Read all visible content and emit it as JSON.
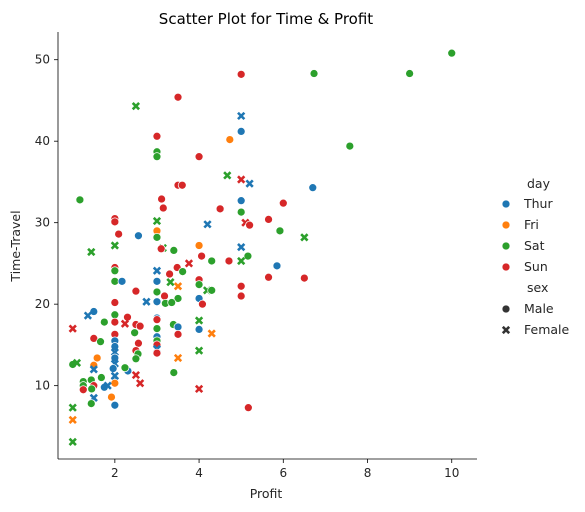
{
  "chart_data": {
    "type": "scatter",
    "title": "Scatter Plot for Time & Profit",
    "xlabel": "Profit",
    "ylabel": "Time-Travel",
    "xlim": [
      0.65,
      10.6
    ],
    "ylim": [
      1.0,
      53.4
    ],
    "xticks": [
      2,
      4,
      6,
      8,
      10
    ],
    "yticks": [
      10,
      20,
      30,
      40,
      50
    ],
    "grid": false,
    "legend_position": "right",
    "hue_title": "day",
    "style_title": "sex",
    "hue_levels": [
      {
        "name": "Thur",
        "color": "#1f77b4"
      },
      {
        "name": "Fri",
        "color": "#ff7f0e"
      },
      {
        "name": "Sat",
        "color": "#2ca02c"
      },
      {
        "name": "Sun",
        "color": "#d62728"
      }
    ],
    "style_levels": [
      {
        "name": "Male",
        "marker": "circle"
      },
      {
        "name": "Female",
        "marker": "x"
      }
    ],
    "points": [
      {
        "x": 10.0,
        "y": 50.8,
        "day": "Sat",
        "sex": "Male"
      },
      {
        "x": 9.0,
        "y": 48.3,
        "day": "Sat",
        "sex": "Male"
      },
      {
        "x": 6.73,
        "y": 48.3,
        "day": "Sat",
        "sex": "Male"
      },
      {
        "x": 5.0,
        "y": 48.2,
        "day": "Sun",
        "sex": "Male"
      },
      {
        "x": 3.5,
        "y": 45.4,
        "day": "Sun",
        "sex": "Male"
      },
      {
        "x": 2.5,
        "y": 44.3,
        "day": "Sat",
        "sex": "Female"
      },
      {
        "x": 5.0,
        "y": 43.1,
        "day": "Thur",
        "sex": "Female"
      },
      {
        "x": 5.0,
        "y": 41.2,
        "day": "Thur",
        "sex": "Male"
      },
      {
        "x": 3.0,
        "y": 40.6,
        "day": "Sun",
        "sex": "Male"
      },
      {
        "x": 4.73,
        "y": 40.2,
        "day": "Fri",
        "sex": "Male"
      },
      {
        "x": 7.58,
        "y": 39.4,
        "day": "Sat",
        "sex": "Male"
      },
      {
        "x": 3.0,
        "y": 38.7,
        "day": "Sat",
        "sex": "Male"
      },
      {
        "x": 3.0,
        "y": 38.1,
        "day": "Sat",
        "sex": "Male"
      },
      {
        "x": 4.0,
        "y": 38.1,
        "day": "Sun",
        "sex": "Male"
      },
      {
        "x": 4.67,
        "y": 35.8,
        "day": "Sat",
        "sex": "Female"
      },
      {
        "x": 5.0,
        "y": 35.3,
        "day": "Sun",
        "sex": "Female"
      },
      {
        "x": 5.2,
        "y": 34.8,
        "day": "Thur",
        "sex": "Female"
      },
      {
        "x": 3.5,
        "y": 34.6,
        "day": "Sun",
        "sex": "Male"
      },
      {
        "x": 3.6,
        "y": 34.6,
        "day": "Sun",
        "sex": "Male"
      },
      {
        "x": 6.7,
        "y": 34.3,
        "day": "Thur",
        "sex": "Male"
      },
      {
        "x": 1.17,
        "y": 32.8,
        "day": "Sat",
        "sex": "Male"
      },
      {
        "x": 3.11,
        "y": 32.9,
        "day": "Sun",
        "sex": "Male"
      },
      {
        "x": 5.0,
        "y": 32.7,
        "day": "Thur",
        "sex": "Male"
      },
      {
        "x": 6.0,
        "y": 32.4,
        "day": "Sun",
        "sex": "Male"
      },
      {
        "x": 3.15,
        "y": 31.8,
        "day": "Sun",
        "sex": "Male"
      },
      {
        "x": 4.5,
        "y": 31.7,
        "day": "Sun",
        "sex": "Male"
      },
      {
        "x": 5.0,
        "y": 31.3,
        "day": "Sat",
        "sex": "Male"
      },
      {
        "x": 2.0,
        "y": 30.5,
        "day": "Sun",
        "sex": "Male"
      },
      {
        "x": 2.0,
        "y": 30.1,
        "day": "Sun",
        "sex": "Male"
      },
      {
        "x": 3.0,
        "y": 30.2,
        "day": "Sat",
        "sex": "Female"
      },
      {
        "x": 5.65,
        "y": 30.4,
        "day": "Sun",
        "sex": "Male"
      },
      {
        "x": 5.1,
        "y": 30.0,
        "day": "Sun",
        "sex": "Female"
      },
      {
        "x": 4.2,
        "y": 29.8,
        "day": "Thur",
        "sex": "Female"
      },
      {
        "x": 5.2,
        "y": 29.7,
        "day": "Sun",
        "sex": "Male"
      },
      {
        "x": 3.0,
        "y": 29.0,
        "day": "Fri",
        "sex": "Male"
      },
      {
        "x": 5.92,
        "y": 29.0,
        "day": "Sat",
        "sex": "Male"
      },
      {
        "x": 2.09,
        "y": 28.6,
        "day": "Sun",
        "sex": "Male"
      },
      {
        "x": 2.56,
        "y": 28.4,
        "day": "Thur",
        "sex": "Male"
      },
      {
        "x": 3.0,
        "y": 28.2,
        "day": "Sat",
        "sex": "Male"
      },
      {
        "x": 6.5,
        "y": 28.2,
        "day": "Sat",
        "sex": "Female"
      },
      {
        "x": 4.0,
        "y": 27.2,
        "day": "Fri",
        "sex": "Male"
      },
      {
        "x": 2.0,
        "y": 27.2,
        "day": "Sat",
        "sex": "Female"
      },
      {
        "x": 3.14,
        "y": 26.9,
        "day": "Sat",
        "sex": "Female"
      },
      {
        "x": 3.1,
        "y": 26.8,
        "day": "Sun",
        "sex": "Male"
      },
      {
        "x": 3.4,
        "y": 26.6,
        "day": "Sat",
        "sex": "Male"
      },
      {
        "x": 1.44,
        "y": 26.4,
        "day": "Sat",
        "sex": "Female"
      },
      {
        "x": 5.0,
        "y": 27.0,
        "day": "Thur",
        "sex": "Female"
      },
      {
        "x": 4.06,
        "y": 25.9,
        "day": "Sun",
        "sex": "Male"
      },
      {
        "x": 5.16,
        "y": 25.9,
        "day": "Sat",
        "sex": "Male"
      },
      {
        "x": 4.3,
        "y": 25.3,
        "day": "Sat",
        "sex": "Male"
      },
      {
        "x": 4.71,
        "y": 25.3,
        "day": "Sun",
        "sex": "Male"
      },
      {
        "x": 5.0,
        "y": 25.3,
        "day": "Sat",
        "sex": "Female"
      },
      {
        "x": 3.76,
        "y": 25.0,
        "day": "Sun",
        "sex": "Female"
      },
      {
        "x": 5.85,
        "y": 24.7,
        "day": "Thur",
        "sex": "Male"
      },
      {
        "x": 3.48,
        "y": 24.5,
        "day": "Sun",
        "sex": "Male"
      },
      {
        "x": 2.0,
        "y": 24.5,
        "day": "Sun",
        "sex": "Male"
      },
      {
        "x": 2.0,
        "y": 24.1,
        "day": "Sat",
        "sex": "Male"
      },
      {
        "x": 3.0,
        "y": 24.1,
        "day": "Thur",
        "sex": "Female"
      },
      {
        "x": 3.61,
        "y": 24.0,
        "day": "Sat",
        "sex": "Male"
      },
      {
        "x": 3.3,
        "y": 23.7,
        "day": "Sun",
        "sex": "Male"
      },
      {
        "x": 5.65,
        "y": 23.3,
        "day": "Sun",
        "sex": "Male"
      },
      {
        "x": 6.5,
        "y": 23.2,
        "day": "Sun",
        "sex": "Male"
      },
      {
        "x": 4.0,
        "y": 23.0,
        "day": "Sun",
        "sex": "Male"
      },
      {
        "x": 3.0,
        "y": 22.8,
        "day": "Thur",
        "sex": "Male"
      },
      {
        "x": 3.32,
        "y": 22.7,
        "day": "Sat",
        "sex": "Female"
      },
      {
        "x": 2.0,
        "y": 22.8,
        "day": "Sat",
        "sex": "Male"
      },
      {
        "x": 2.17,
        "y": 22.8,
        "day": "Thur",
        "sex": "Male"
      },
      {
        "x": 4.0,
        "y": 22.4,
        "day": "Sat",
        "sex": "Male"
      },
      {
        "x": 5.0,
        "y": 22.2,
        "day": "Sun",
        "sex": "Male"
      },
      {
        "x": 3.5,
        "y": 22.2,
        "day": "Fri",
        "sex": "Female"
      },
      {
        "x": 3.0,
        "y": 21.5,
        "day": "Sat",
        "sex": "Male"
      },
      {
        "x": 2.5,
        "y": 21.6,
        "day": "Sun",
        "sex": "Male"
      },
      {
        "x": 4.19,
        "y": 21.7,
        "day": "Sat",
        "sex": "Female"
      },
      {
        "x": 4.3,
        "y": 21.7,
        "day": "Sat",
        "sex": "Male"
      },
      {
        "x": 5.0,
        "y": 21.0,
        "day": "Sun",
        "sex": "Male"
      },
      {
        "x": 3.18,
        "y": 21.0,
        "day": "Sun",
        "sex": "Male"
      },
      {
        "x": 4.0,
        "y": 20.7,
        "day": "Thur",
        "sex": "Male"
      },
      {
        "x": 3.5,
        "y": 20.7,
        "day": "Sat",
        "sex": "Male"
      },
      {
        "x": 3.0,
        "y": 20.3,
        "day": "Thur",
        "sex": "Male"
      },
      {
        "x": 2.75,
        "y": 20.3,
        "day": "Thur",
        "sex": "Female"
      },
      {
        "x": 2.0,
        "y": 20.2,
        "day": "Sun",
        "sex": "Male"
      },
      {
        "x": 3.2,
        "y": 20.1,
        "day": "Sat",
        "sex": "Male"
      },
      {
        "x": 4.08,
        "y": 20.0,
        "day": "Sun",
        "sex": "Male"
      },
      {
        "x": 3.35,
        "y": 20.2,
        "day": "Sat",
        "sex": "Male"
      },
      {
        "x": 1.5,
        "y": 19.1,
        "day": "Thur",
        "sex": "Male"
      },
      {
        "x": 1.36,
        "y": 18.6,
        "day": "Thur",
        "sex": "Female"
      },
      {
        "x": 2.0,
        "y": 18.7,
        "day": "Sat",
        "sex": "Male"
      },
      {
        "x": 2.3,
        "y": 18.4,
        "day": "Sun",
        "sex": "Male"
      },
      {
        "x": 3.0,
        "y": 18.3,
        "day": "Thur",
        "sex": "Male"
      },
      {
        "x": 3.0,
        "y": 18.1,
        "day": "Sun",
        "sex": "Male"
      },
      {
        "x": 4.0,
        "y": 18.0,
        "day": "Sat",
        "sex": "Female"
      },
      {
        "x": 2.0,
        "y": 17.8,
        "day": "Sun",
        "sex": "Male"
      },
      {
        "x": 2.24,
        "y": 17.6,
        "day": "Sun",
        "sex": "Female"
      },
      {
        "x": 1.0,
        "y": 17.0,
        "day": "Sun",
        "sex": "Female"
      },
      {
        "x": 1.75,
        "y": 17.8,
        "day": "Sat",
        "sex": "Male"
      },
      {
        "x": 2.5,
        "y": 17.5,
        "day": "Sun",
        "sex": "Male"
      },
      {
        "x": 2.6,
        "y": 17.3,
        "day": "Sun",
        "sex": "Male"
      },
      {
        "x": 3.39,
        "y": 17.5,
        "day": "Sat",
        "sex": "Male"
      },
      {
        "x": 3.5,
        "y": 17.2,
        "day": "Thur",
        "sex": "Male"
      },
      {
        "x": 3.0,
        "y": 17.0,
        "day": "Sat",
        "sex": "Male"
      },
      {
        "x": 4.0,
        "y": 16.9,
        "day": "Thur",
        "sex": "Male"
      },
      {
        "x": 4.3,
        "y": 16.4,
        "day": "Fri",
        "sex": "Female"
      },
      {
        "x": 2.0,
        "y": 16.3,
        "day": "Sun",
        "sex": "Male"
      },
      {
        "x": 2.47,
        "y": 16.5,
        "day": "Sat",
        "sex": "Male"
      },
      {
        "x": 3.0,
        "y": 16.0,
        "day": "Thur",
        "sex": "Male"
      },
      {
        "x": 3.5,
        "y": 16.3,
        "day": "Sun",
        "sex": "Male"
      },
      {
        "x": 1.5,
        "y": 15.8,
        "day": "Sun",
        "sex": "Male"
      },
      {
        "x": 1.66,
        "y": 15.4,
        "day": "Sat",
        "sex": "Male"
      },
      {
        "x": 2.0,
        "y": 15.5,
        "day": "Thur",
        "sex": "Male"
      },
      {
        "x": 2.56,
        "y": 15.2,
        "day": "Sun",
        "sex": "Male"
      },
      {
        "x": 3.0,
        "y": 15.5,
        "day": "Sat",
        "sex": "Male"
      },
      {
        "x": 3.0,
        "y": 15.0,
        "day": "Sun",
        "sex": "Male"
      },
      {
        "x": 2.0,
        "y": 14.8,
        "day": "Thur",
        "sex": "Male"
      },
      {
        "x": 3.0,
        "y": 14.5,
        "day": "Thur",
        "sex": "Female"
      },
      {
        "x": 4.0,
        "y": 14.3,
        "day": "Sat",
        "sex": "Female"
      },
      {
        "x": 2.5,
        "y": 14.3,
        "day": "Sun",
        "sex": "Male"
      },
      {
        "x": 2.0,
        "y": 14.1,
        "day": "Thur",
        "sex": "Female"
      },
      {
        "x": 2.55,
        "y": 13.9,
        "day": "Sat",
        "sex": "Male"
      },
      {
        "x": 3.0,
        "y": 14.0,
        "day": "Sun",
        "sex": "Male"
      },
      {
        "x": 1.58,
        "y": 13.4,
        "day": "Fri",
        "sex": "Male"
      },
      {
        "x": 3.5,
        "y": 13.4,
        "day": "Fri",
        "sex": "Female"
      },
      {
        "x": 2.0,
        "y": 13.4,
        "day": "Thur",
        "sex": "Male"
      },
      {
        "x": 2.5,
        "y": 13.3,
        "day": "Sat",
        "sex": "Male"
      },
      {
        "x": 1.0,
        "y": 12.6,
        "day": "Sat",
        "sex": "Male"
      },
      {
        "x": 1.1,
        "y": 12.8,
        "day": "Sat",
        "sex": "Female"
      },
      {
        "x": 1.5,
        "y": 12.5,
        "day": "Fri",
        "sex": "Male"
      },
      {
        "x": 2.0,
        "y": 12.7,
        "day": "Thur",
        "sex": "Female"
      },
      {
        "x": 1.5,
        "y": 12.0,
        "day": "Thur",
        "sex": "Female"
      },
      {
        "x": 1.96,
        "y": 12.1,
        "day": "Thur",
        "sex": "Male"
      },
      {
        "x": 2.31,
        "y": 11.8,
        "day": "Thur",
        "sex": "Male"
      },
      {
        "x": 2.24,
        "y": 12.2,
        "day": "Sat",
        "sex": "Male"
      },
      {
        "x": 3.4,
        "y": 11.6,
        "day": "Sat",
        "sex": "Male"
      },
      {
        "x": 2.0,
        "y": 11.2,
        "day": "Thur",
        "sex": "Female"
      },
      {
        "x": 1.68,
        "y": 11.0,
        "day": "Sat",
        "sex": "Male"
      },
      {
        "x": 2.5,
        "y": 11.3,
        "day": "Sun",
        "sex": "Female"
      },
      {
        "x": 1.25,
        "y": 10.5,
        "day": "Sat",
        "sex": "Male"
      },
      {
        "x": 1.44,
        "y": 10.7,
        "day": "Sat",
        "sex": "Male"
      },
      {
        "x": 2.0,
        "y": 10.6,
        "day": "Thur",
        "sex": "Female"
      },
      {
        "x": 2.0,
        "y": 10.3,
        "day": "Fri",
        "sex": "Male"
      },
      {
        "x": 2.6,
        "y": 10.3,
        "day": "Sun",
        "sex": "Female"
      },
      {
        "x": 1.25,
        "y": 10.0,
        "day": "Sat",
        "sex": "Male"
      },
      {
        "x": 1.5,
        "y": 10.0,
        "day": "Sun",
        "sex": "Male"
      },
      {
        "x": 1.75,
        "y": 9.8,
        "day": "Thur",
        "sex": "Male"
      },
      {
        "x": 1.83,
        "y": 10.0,
        "day": "Thur",
        "sex": "Female"
      },
      {
        "x": 1.25,
        "y": 9.5,
        "day": "Sun",
        "sex": "Male"
      },
      {
        "x": 4.0,
        "y": 9.6,
        "day": "Sun",
        "sex": "Female"
      },
      {
        "x": 1.45,
        "y": 9.6,
        "day": "Sat",
        "sex": "Male"
      },
      {
        "x": 1.92,
        "y": 8.6,
        "day": "Fri",
        "sex": "Male"
      },
      {
        "x": 1.5,
        "y": 8.5,
        "day": "Thur",
        "sex": "Female"
      },
      {
        "x": 1.44,
        "y": 7.8,
        "day": "Sat",
        "sex": "Male"
      },
      {
        "x": 2.0,
        "y": 7.6,
        "day": "Thur",
        "sex": "Male"
      },
      {
        "x": 1.0,
        "y": 7.3,
        "day": "Sat",
        "sex": "Female"
      },
      {
        "x": 5.17,
        "y": 7.3,
        "day": "Sun",
        "sex": "Male"
      },
      {
        "x": 1.0,
        "y": 5.8,
        "day": "Fri",
        "sex": "Female"
      },
      {
        "x": 1.0,
        "y": 3.1,
        "day": "Sat",
        "sex": "Female"
      }
    ]
  }
}
